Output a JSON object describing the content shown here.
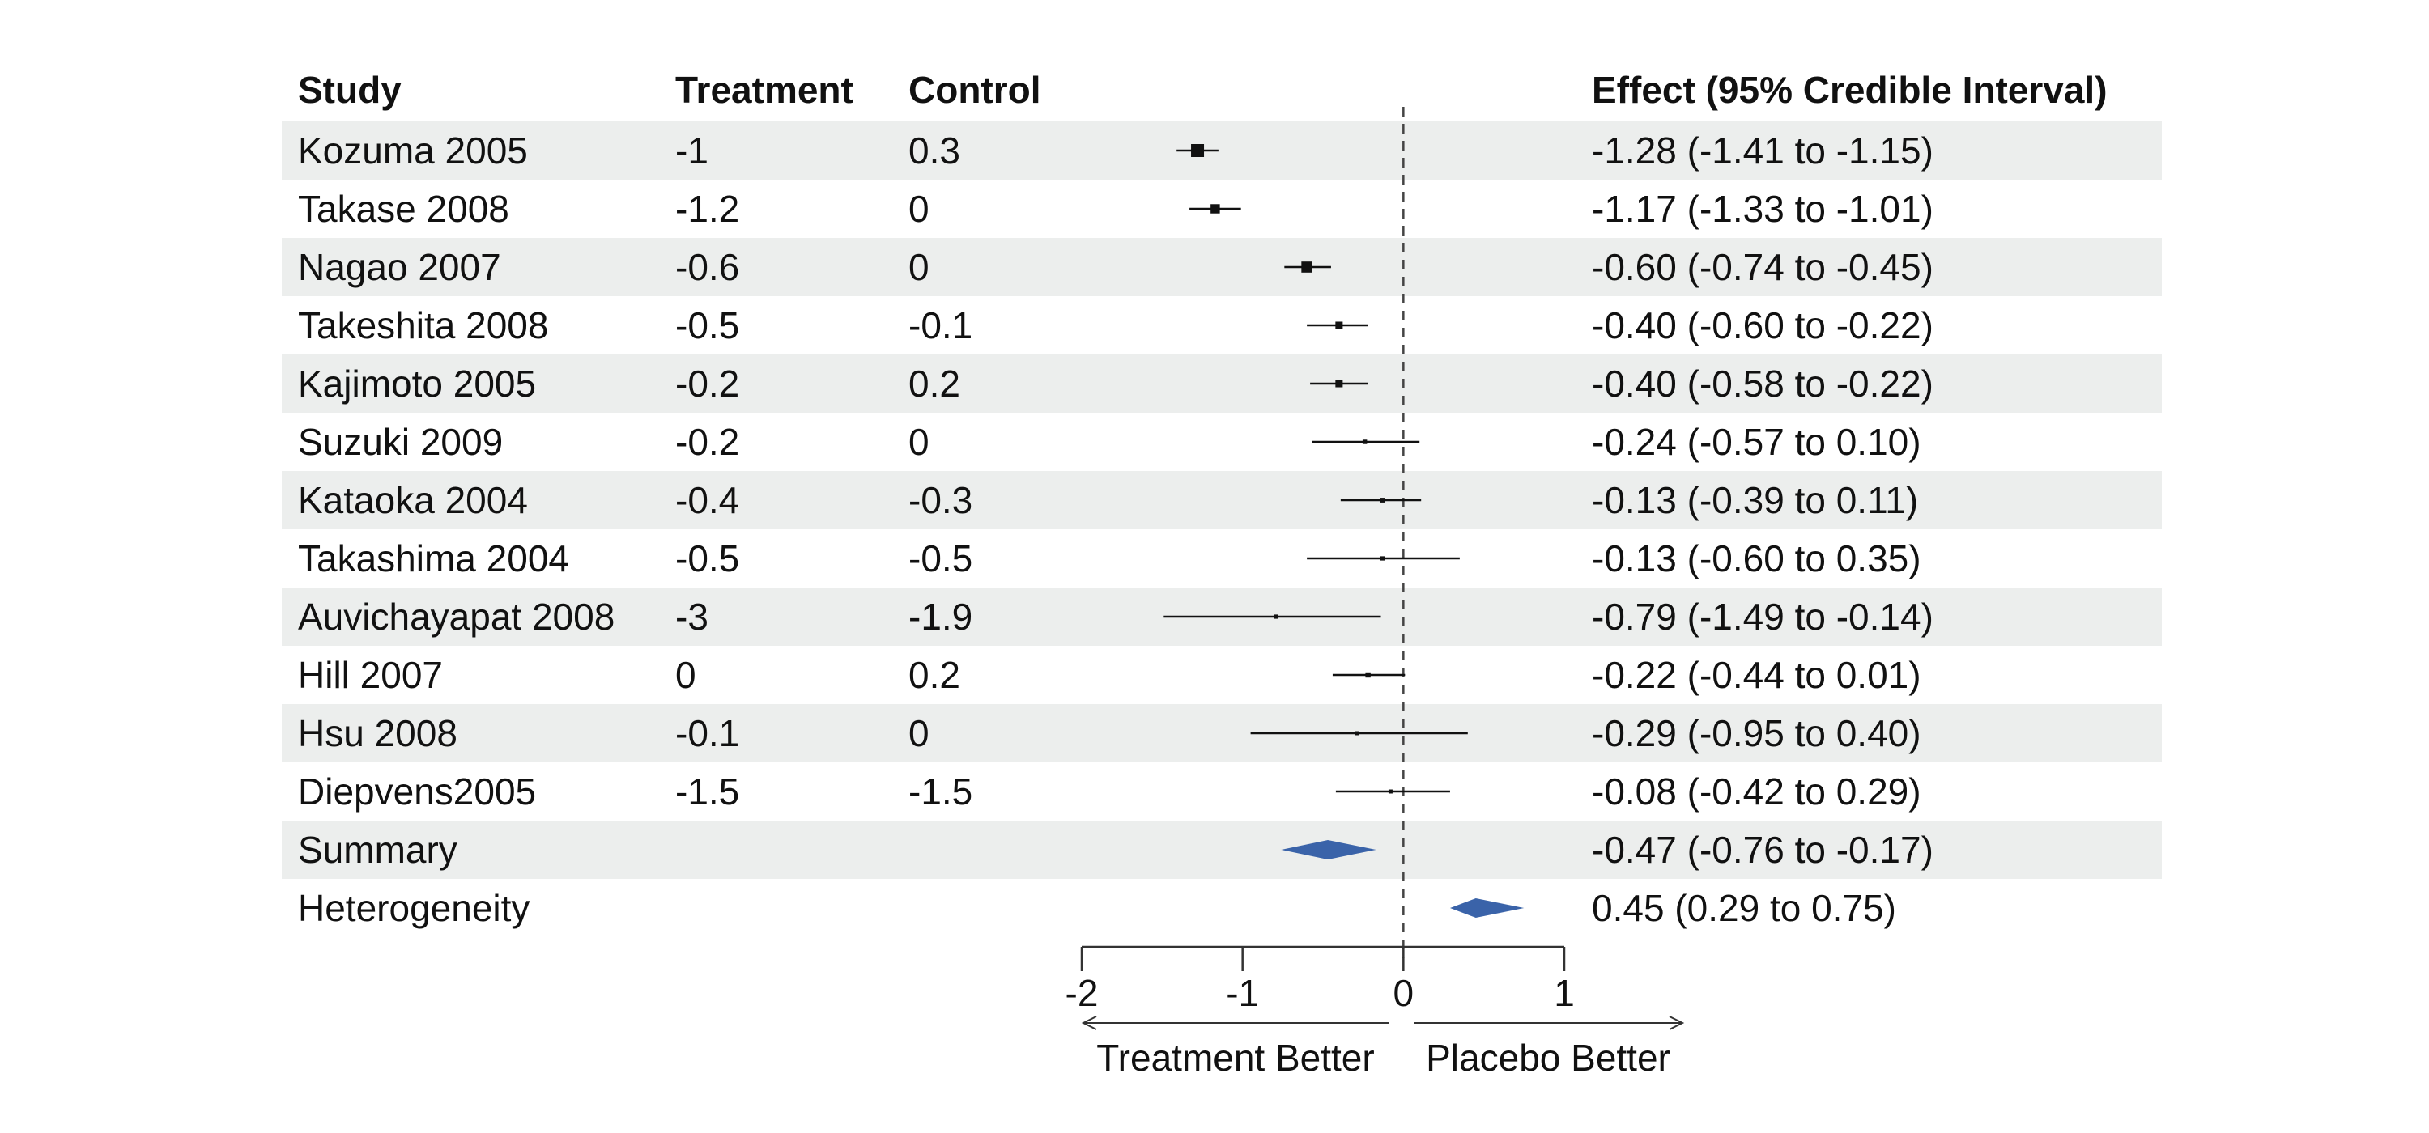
{
  "chart_data": {
    "type": "forest",
    "columns": {
      "study": "Study",
      "treatment": "Treatment",
      "control": "Control",
      "effect": "Effect (95% Credible Interval)"
    },
    "rows": [
      {
        "study": "Kozuma 2005",
        "treatment": "-1",
        "control": "0.3",
        "effect_text": "-1.28 (-1.41 to -1.15)",
        "estimate": -1.28,
        "lower": -1.41,
        "upper": -1.15,
        "marker": "square",
        "weight": 1.0
      },
      {
        "study": "Takase 2008",
        "treatment": "-1.2",
        "control": "0",
        "effect_text": "-1.17 (-1.33 to -1.01)",
        "estimate": -1.17,
        "lower": -1.33,
        "upper": -1.01,
        "marker": "square",
        "weight": 0.62
      },
      {
        "study": "Nagao 2007",
        "treatment": "-0.6",
        "control": "0",
        "effect_text": "-0.60 (-0.74 to -0.45)",
        "estimate": -0.6,
        "lower": -0.74,
        "upper": -0.45,
        "marker": "square",
        "weight": 0.8
      },
      {
        "study": "Takeshita 2008",
        "treatment": "-0.5",
        "control": "-0.1",
        "effect_text": "-0.40 (-0.60 to -0.22)",
        "estimate": -0.4,
        "lower": -0.6,
        "upper": -0.22,
        "marker": "square",
        "weight": 0.42
      },
      {
        "study": "Kajimoto 2005",
        "treatment": "-0.2",
        "control": "0.2",
        "effect_text": "-0.40 (-0.58 to -0.22)",
        "estimate": -0.4,
        "lower": -0.58,
        "upper": -0.22,
        "marker": "square",
        "weight": 0.42
      },
      {
        "study": "Suzuki 2009",
        "treatment": "-0.2",
        "control": "0",
        "effect_text": "-0.24 (-0.57 to 0.10)",
        "estimate": -0.24,
        "lower": -0.57,
        "upper": 0.1,
        "marker": "square",
        "weight": 0.12
      },
      {
        "study": "Kataoka 2004",
        "treatment": "-0.4",
        "control": "-0.3",
        "effect_text": "-0.13 (-0.39 to 0.11)",
        "estimate": -0.13,
        "lower": -0.39,
        "upper": 0.11,
        "marker": "square",
        "weight": 0.15
      },
      {
        "study": "Takashima 2004",
        "treatment": "-0.5",
        "control": "-0.5",
        "effect_text": "-0.13 (-0.60 to 0.35)",
        "estimate": -0.13,
        "lower": -0.6,
        "upper": 0.35,
        "marker": "square",
        "weight": 0.1
      },
      {
        "study": "Auvichayapat 2008",
        "treatment": "-3",
        "control": "-1.9",
        "effect_text": "-0.79 (-1.49 to -0.14)",
        "estimate": -0.79,
        "lower": -1.49,
        "upper": -0.14,
        "marker": "square",
        "weight": 0.1
      },
      {
        "study": "Hill 2007",
        "treatment": "0",
        "control": "0.2",
        "effect_text": "-0.22 (-0.44 to 0.01)",
        "estimate": -0.22,
        "lower": -0.44,
        "upper": 0.01,
        "marker": "square",
        "weight": 0.2
      },
      {
        "study": "Hsu 2008",
        "treatment": "-0.1",
        "control": "0",
        "effect_text": "-0.29 (-0.95 to 0.40)",
        "estimate": -0.29,
        "lower": -0.95,
        "upper": 0.4,
        "marker": "square",
        "weight": 0.08
      },
      {
        "study": "Diepvens2005",
        "treatment": "-1.5",
        "control": "-1.5",
        "effect_text": "-0.08 (-0.42 to 0.29)",
        "estimate": -0.08,
        "lower": -0.42,
        "upper": 0.29,
        "marker": "square",
        "weight": 0.08
      },
      {
        "study": "Summary",
        "treatment": "",
        "control": "",
        "effect_text": "-0.47 (-0.76 to -0.17)",
        "estimate": -0.47,
        "lower": -0.76,
        "upper": -0.17,
        "marker": "diamond",
        "weight": 1.0
      },
      {
        "study": "Heterogeneity",
        "treatment": "",
        "control": "",
        "effect_text": "0.45 (0.29 to 0.75)",
        "estimate": 0.45,
        "lower": 0.29,
        "upper": 0.75,
        "marker": "diamond",
        "weight": 0.8
      }
    ],
    "x_axis": {
      "ticks": [
        -2,
        -1,
        0,
        1
      ],
      "tick_labels": [
        "-2",
        "-1",
        "0",
        "1"
      ],
      "range": [
        -2,
        1
      ],
      "reference_line": 0
    },
    "direction_labels": {
      "left": "Treatment Better",
      "right": "Placebo Better"
    },
    "colors": {
      "diamond": "#3a63a9",
      "marker": "#111111",
      "stripe": "#eceeed",
      "text": "#111111"
    },
    "striped_rows": true
  }
}
